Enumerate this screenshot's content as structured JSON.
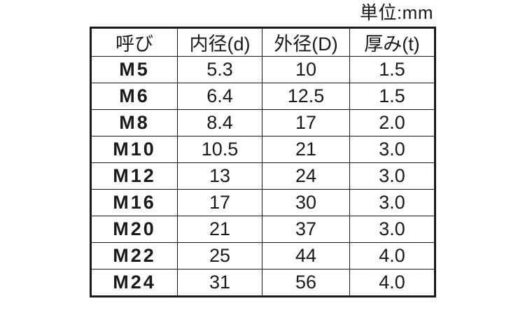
{
  "unit_label": "単位:mm",
  "chart_data": {
    "type": "table",
    "title": "単位:mm",
    "columns": [
      "呼び",
      "内径(d)",
      "外径(D)",
      "厚み(t)"
    ],
    "rows": [
      [
        "M5",
        5.3,
        10,
        1.5
      ],
      [
        "M6",
        6.4,
        12.5,
        1.5
      ],
      [
        "M8",
        8.4,
        17,
        2.0
      ],
      [
        "M10",
        10.5,
        21,
        3.0
      ],
      [
        "M12",
        13,
        24,
        3.0
      ],
      [
        "M16",
        17,
        30,
        3.0
      ],
      [
        "M20",
        21,
        37,
        3.0
      ],
      [
        "M22",
        25,
        44,
        4.0
      ],
      [
        "M24",
        31,
        56,
        4.0
      ]
    ]
  },
  "table": {
    "headers": [
      "呼び",
      "内径(d)",
      "外径(D)",
      "厚み(t)"
    ],
    "rows": [
      [
        "M5",
        "5.3",
        "10",
        "1.5"
      ],
      [
        "M6",
        "6.4",
        "12.5",
        "1.5"
      ],
      [
        "M8",
        "8.4",
        "17",
        "2.0"
      ],
      [
        "M10",
        "10.5",
        "21",
        "3.0"
      ],
      [
        "M12",
        "13",
        "24",
        "3.0"
      ],
      [
        "M16",
        "17",
        "30",
        "3.0"
      ],
      [
        "M20",
        "21",
        "37",
        "3.0"
      ],
      [
        "M22",
        "25",
        "44",
        "4.0"
      ],
      [
        "M24",
        "31",
        "56",
        "4.0"
      ]
    ]
  },
  "colors": {
    "background": "#ffffff",
    "text": "#1a1a1a",
    "border": "#1a1a1a"
  }
}
